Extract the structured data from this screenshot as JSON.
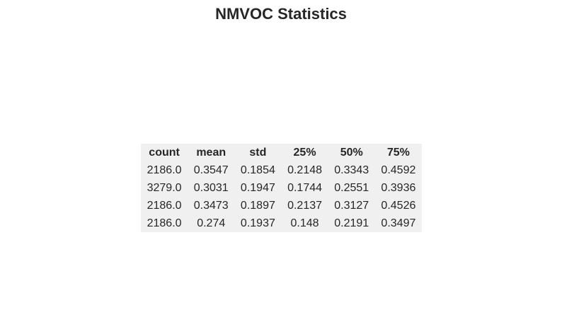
{
  "chart_data": {
    "type": "table",
    "title": "NMVOC Statistics",
    "columns": [
      "count",
      "mean",
      "std",
      "25%",
      "50%",
      "75%"
    ],
    "rows": [
      [
        "2186.0",
        "0.3547",
        "0.1854",
        "0.2148",
        "0.3343",
        "0.4592"
      ],
      [
        "3279.0",
        "0.3031",
        "0.1947",
        "0.1744",
        "0.2551",
        "0.3936"
      ],
      [
        "2186.0",
        "0.3473",
        "0.1897",
        "0.2137",
        "0.3127",
        "0.4526"
      ],
      [
        "2186.0",
        "0.274",
        "0.1937",
        "0.148",
        "0.2191",
        "0.3497"
      ]
    ]
  }
}
